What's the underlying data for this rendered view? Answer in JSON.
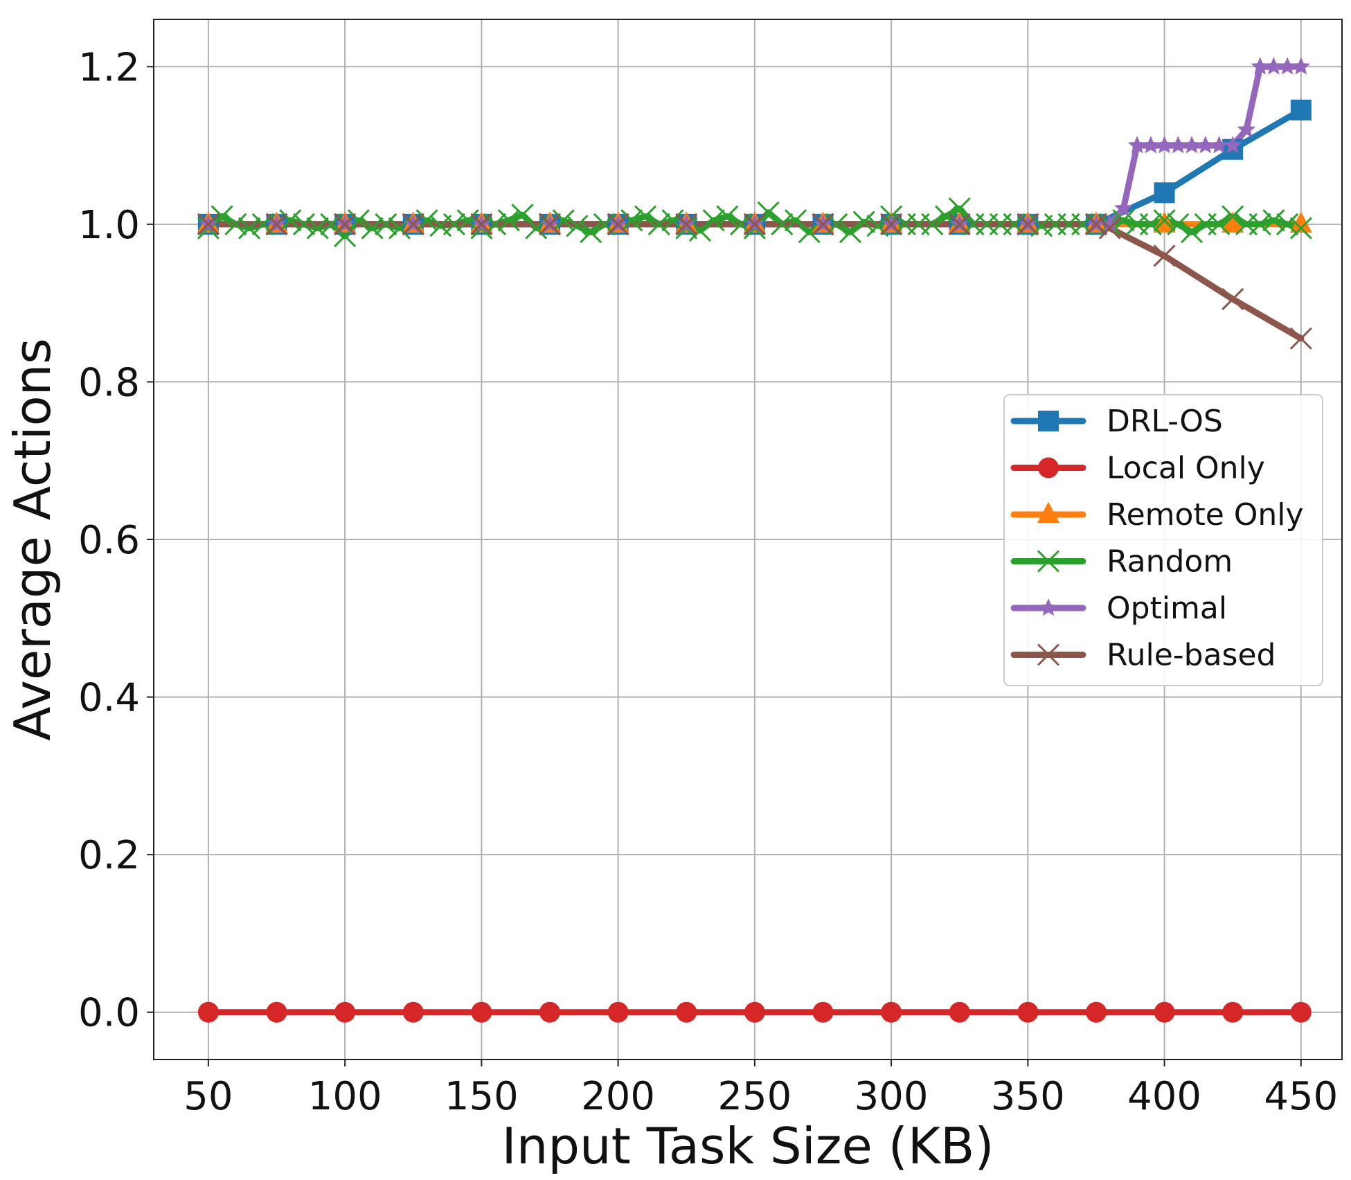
{
  "chart_data": {
    "type": "line",
    "title": "",
    "xlabel": "Input Task Size (KB)",
    "ylabel": "Average Actions",
    "xlim": [
      30,
      465
    ],
    "ylim": [
      -0.06,
      1.26
    ],
    "xticks": [
      50,
      100,
      150,
      200,
      250,
      300,
      350,
      400,
      450
    ],
    "xtick_labels": [
      "50",
      "100",
      "150",
      "200",
      "250",
      "300",
      "350",
      "400",
      "450"
    ],
    "yticks": [
      0.0,
      0.2,
      0.4,
      0.6,
      0.8,
      1.0,
      1.2
    ],
    "ytick_labels": [
      "0.0",
      "0.2",
      "0.4",
      "0.6",
      "0.8",
      "1.0",
      "1.2"
    ],
    "grid": true,
    "legend_position": "center-right",
    "series": [
      {
        "name": "DRL-OS",
        "color": "#1f77b4",
        "marker": "square",
        "x": [
          50,
          75,
          100,
          125,
          150,
          175,
          200,
          225,
          250,
          275,
          300,
          325,
          350,
          375,
          400,
          425,
          450
        ],
        "y": [
          1.0,
          1.0,
          1.0,
          1.0,
          1.0,
          1.0,
          1.0,
          1.0,
          1.0,
          1.0,
          1.0,
          1.0,
          1.0,
          1.0,
          1.04,
          1.095,
          1.145
        ]
      },
      {
        "name": "Local Only",
        "color": "#d62728",
        "marker": "circle",
        "x": [
          50,
          75,
          100,
          125,
          150,
          175,
          200,
          225,
          250,
          275,
          300,
          325,
          350,
          375,
          400,
          425,
          450
        ],
        "y": [
          0,
          0,
          0,
          0,
          0,
          0,
          0,
          0,
          0,
          0,
          0,
          0,
          0,
          0,
          0,
          0,
          0
        ]
      },
      {
        "name": "Remote Only",
        "color": "#ff7f0e",
        "marker": "triangle",
        "x": [
          50,
          75,
          100,
          125,
          150,
          175,
          200,
          225,
          250,
          275,
          300,
          325,
          350,
          375,
          400,
          425,
          450
        ],
        "y": [
          1.0,
          1.0,
          1.0,
          1.0,
          1.0,
          1.0,
          1.0,
          1.0,
          1.0,
          1.0,
          1.0,
          1.0,
          1.0,
          1.0,
          1.0,
          1.0,
          1.0
        ]
      },
      {
        "name": "Random",
        "color": "#2ca02c",
        "marker": "x",
        "x": [
          50,
          55,
          60,
          65,
          70,
          75,
          80,
          85,
          90,
          95,
          100,
          105,
          110,
          115,
          120,
          125,
          130,
          135,
          140,
          145,
          150,
          155,
          160,
          165,
          170,
          175,
          180,
          185,
          190,
          195,
          200,
          205,
          210,
          215,
          220,
          225,
          230,
          235,
          240,
          245,
          250,
          255,
          260,
          265,
          270,
          275,
          280,
          285,
          290,
          295,
          300,
          305,
          310,
          315,
          320,
          325,
          330,
          335,
          340,
          345,
          350,
          355,
          360,
          365,
          370,
          375,
          380,
          385,
          390,
          395,
          400,
          405,
          410,
          415,
          420,
          425,
          430,
          435,
          440,
          445,
          450
        ],
        "y": [
          0.995,
          1.01,
          1.0,
          0.995,
          1.0,
          1.0,
          1.005,
          1.0,
          0.995,
          1.0,
          0.985,
          1.005,
          0.995,
          1.0,
          0.995,
          1.0,
          1.005,
          0.998,
          1.0,
          1.005,
          0.995,
          1.0,
          1.005,
          1.012,
          0.995,
          1.0,
          1.005,
          0.998,
          0.99,
          1.0,
          1.0,
          1.005,
          1.01,
          1.0,
          1.005,
          0.995,
          0.992,
          1.005,
          1.01,
          1.0,
          0.995,
          1.015,
          1.0,
          1.005,
          0.99,
          1.0,
          1.0,
          0.99,
          1.003,
          0.998,
          1.01,
          1.0,
          1.0,
          1.0,
          1.01,
          1.02,
          1.0,
          1.0,
          1.0,
          1.0,
          1.0,
          0.998,
          1.0,
          1.0,
          1.0,
          1.0,
          1.0,
          1.005,
          1.0,
          1.0,
          1.005,
          1.0,
          0.99,
          1.0,
          1.0,
          1.01,
          1.0,
          1.0,
          1.005,
          1.0,
          0.995
        ]
      },
      {
        "name": "Optimal",
        "color": "#9467bd",
        "marker": "star",
        "x": [
          50,
          75,
          100,
          125,
          150,
          175,
          200,
          225,
          250,
          275,
          300,
          325,
          350,
          375,
          380,
          385,
          390,
          395,
          400,
          405,
          410,
          415,
          420,
          425,
          430,
          435,
          440,
          445,
          450
        ],
        "y": [
          1.0,
          1.0,
          1.0,
          1.0,
          1.0,
          1.0,
          1.0,
          1.0,
          1.0,
          1.0,
          1.0,
          1.0,
          1.0,
          1.0,
          1.0,
          1.02,
          1.1,
          1.1,
          1.1,
          1.1,
          1.1,
          1.1,
          1.1,
          1.1,
          1.12,
          1.2,
          1.2,
          1.2,
          1.2
        ]
      },
      {
        "name": "Rule-based",
        "color": "#8c564b",
        "marker": "x",
        "x": [
          50,
          75,
          100,
          125,
          150,
          175,
          200,
          225,
          250,
          275,
          300,
          325,
          350,
          375,
          380,
          400,
          425,
          450
        ],
        "y": [
          1.0,
          1.0,
          1.0,
          1.0,
          1.0,
          1.0,
          1.0,
          1.0,
          1.0,
          1.0,
          1.0,
          1.0,
          1.0,
          1.0,
          0.995,
          0.96,
          0.905,
          0.855
        ]
      }
    ]
  }
}
